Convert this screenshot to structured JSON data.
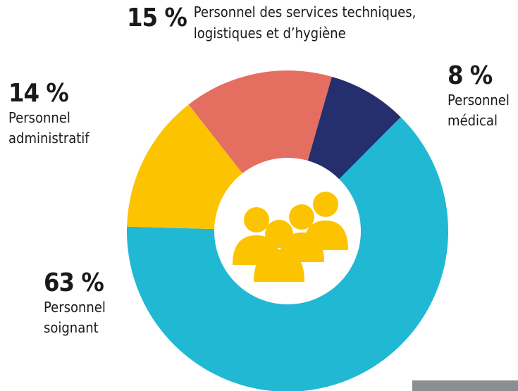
{
  "chart_data": {
    "type": "pie",
    "categories": [
      "Personnel médical",
      "Personnel soignant",
      "Personnel administratif",
      "Personnel des services techniques, logistiques et d’hygiène"
    ],
    "values": [
      8,
      63,
      14,
      15
    ],
    "value_labels": [
      "8 %",
      "63 %",
      "14 %",
      "15 %"
    ],
    "colors": [
      "#252f6e",
      "#21b8d4",
      "#fcc400",
      "#e46f60"
    ]
  }
}
